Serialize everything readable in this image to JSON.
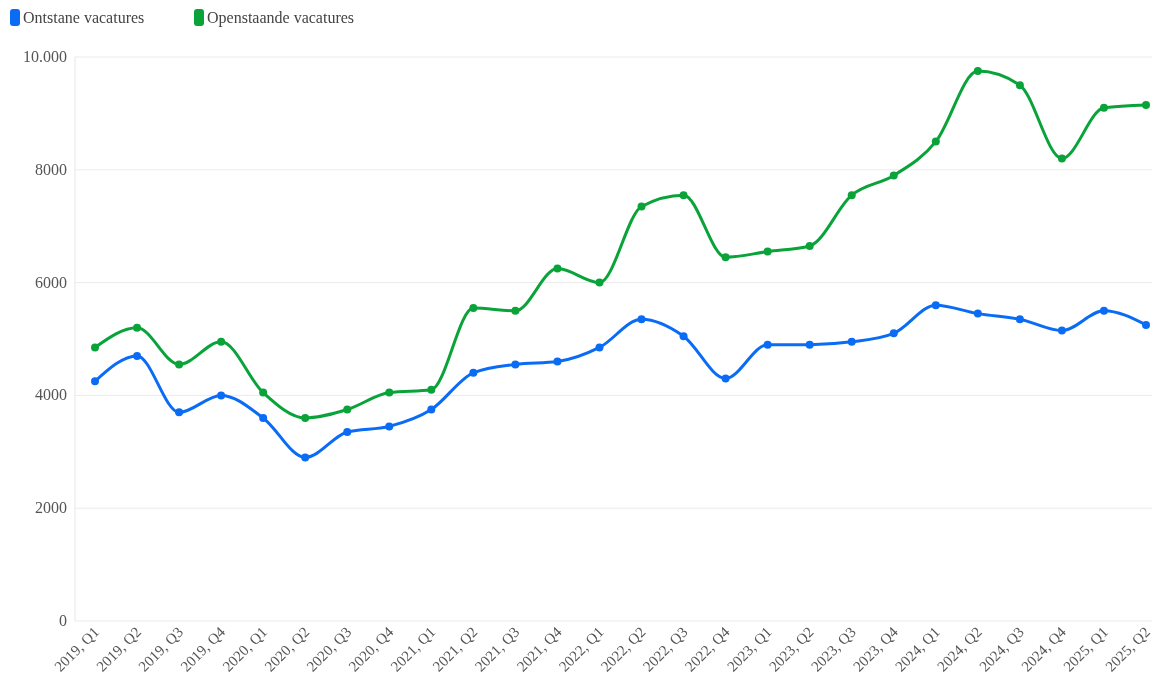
{
  "chart_data": {
    "type": "line",
    "categories": [
      "2019, Q1",
      "2019, Q2",
      "2019, Q3",
      "2019, Q4",
      "2020, Q1",
      "2020, Q2",
      "2020, Q3",
      "2020, Q4",
      "2021, Q1",
      "2021, Q2",
      "2021, Q3",
      "2021, Q4",
      "2022, Q1",
      "2022, Q2",
      "2022, Q3",
      "2022, Q4",
      "2023, Q1",
      "2023, Q2",
      "2023, Q3",
      "2023, Q4",
      "2024, Q1",
      "2024, Q2",
      "2024, Q3",
      "2024, Q4",
      "2025, Q1",
      "2025, Q2"
    ],
    "series": [
      {
        "name": "Ontstane vacatures",
        "color": "#0a6cf5",
        "values": [
          4250,
          4700,
          3700,
          4000,
          3600,
          2900,
          3350,
          3450,
          3750,
          4400,
          4550,
          4600,
          4850,
          5350,
          5050,
          4300,
          4900,
          4900,
          4950,
          5100,
          5600,
          5450,
          5350,
          5150,
          5500,
          5250
        ]
      },
      {
        "name": "Openstaande vacatures",
        "color": "#0aa339",
        "values": [
          4850,
          5200,
          4550,
          4950,
          4050,
          3600,
          3750,
          4050,
          4100,
          5550,
          5500,
          6250,
          6000,
          7350,
          7550,
          6450,
          6550,
          6650,
          7550,
          7900,
          8500,
          9750,
          9500,
          8200,
          9100,
          9150
        ]
      }
    ],
    "ylim": [
      0,
      10000
    ],
    "yticks": [
      0,
      2000,
      4000,
      6000,
      8000,
      {
        "value": 10000,
        "label": "10.000"
      }
    ],
    "grid": "y",
    "legend": "top left",
    "marker": "circle",
    "line_style": "solid"
  }
}
